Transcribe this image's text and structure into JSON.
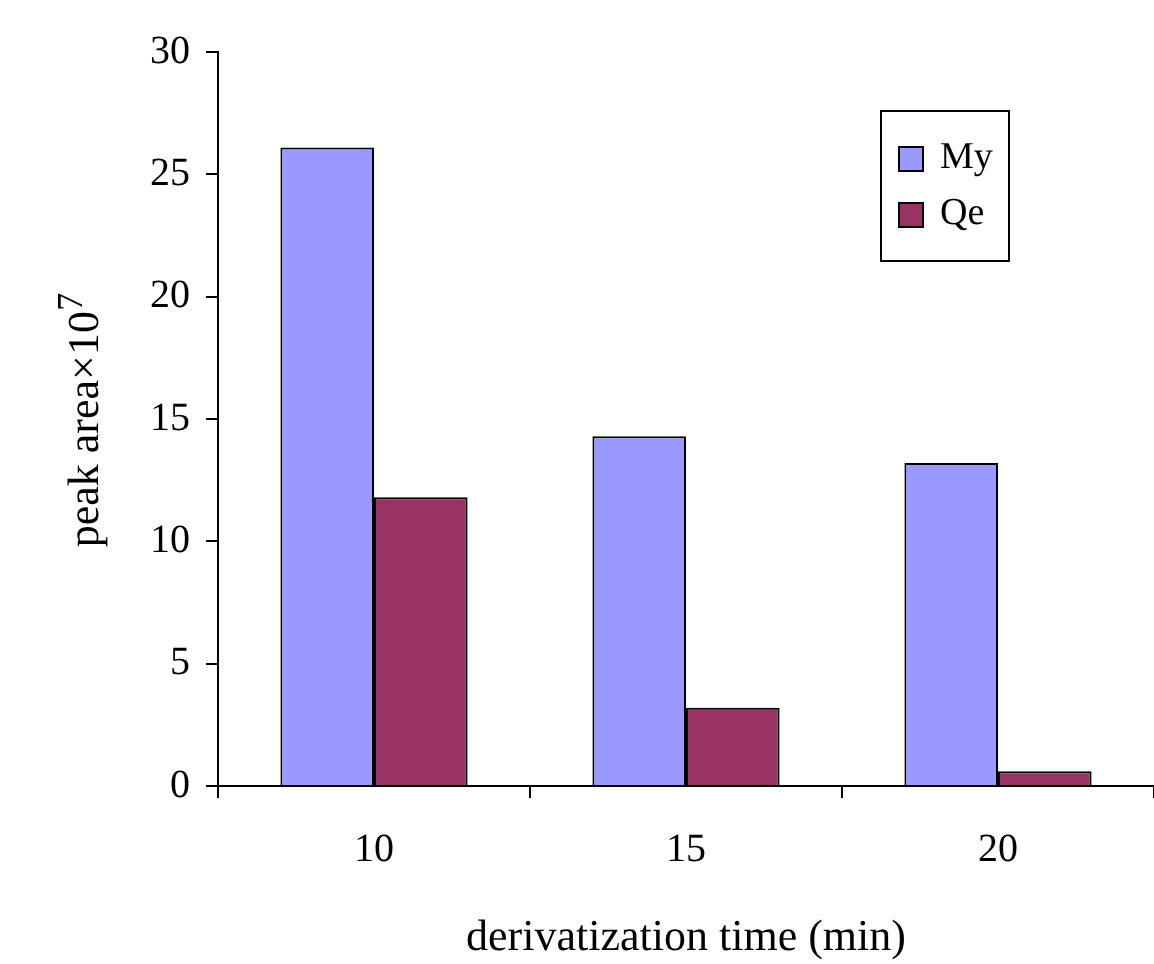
{
  "chart_data": {
    "type": "bar",
    "xlabel": "derivatization time (min)",
    "ylabel": "peak area×10$^{7}$",
    "categories": [
      "10",
      "15",
      "20"
    ],
    "series": [
      {
        "name": "My",
        "color": "#9999ff",
        "values": [
          26.1,
          14.3,
          13.2
        ]
      },
      {
        "name": "Qe",
        "color": "#993366",
        "values": [
          11.8,
          3.2,
          0.6
        ]
      }
    ],
    "ylim": [
      0,
      30
    ],
    "yticks": [
      0,
      5,
      10,
      15,
      20,
      25,
      30
    ],
    "grid": false,
    "legend": "top right"
  }
}
